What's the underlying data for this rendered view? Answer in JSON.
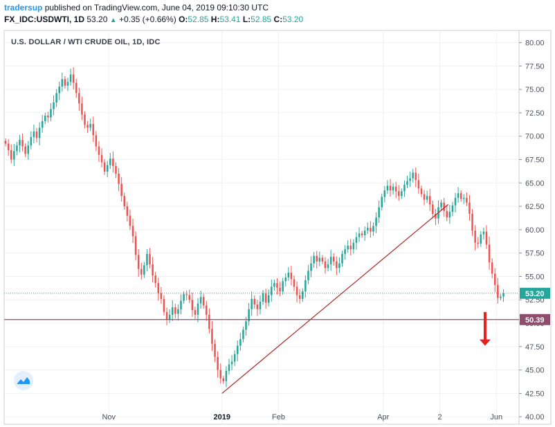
{
  "header": {
    "author": "tradersup",
    "published": "published on TradingView.com, June 04, 2019 09:10:30 UTC",
    "symbol": "FX_IDC:USDWTI, 1D",
    "last": "53.20",
    "change": "+0.35 (+0.66%)",
    "o_label": "O:",
    "o": "52.85",
    "h_label": "H:",
    "h": "53.41",
    "l_label": "L:",
    "l": "52.85",
    "c_label": "C:",
    "c": "53.20"
  },
  "colors": {
    "up": "#26a69a",
    "down": "#ef5350",
    "trend": "#b22222",
    "level": "#8e4d6a",
    "arrow": "#e8211c"
  },
  "icons": {
    "logo": "tradingview-logo-icon",
    "arrow": "red-down-arrow-icon"
  },
  "chart_data": {
    "type": "candlestick",
    "title": "U.S. DOLLAR / WTI CRUDE OIL, 1D, IDC",
    "ylim": [
      39.2,
      81.3
    ],
    "xlim": [
      0,
      182
    ],
    "yticks": [
      "80.00",
      "77.50",
      "75.00",
      "72.50",
      "70.00",
      "67.50",
      "65.00",
      "62.50",
      "60.00",
      "57.50",
      "55.00",
      "52.50",
      "50.00",
      "47.50",
      "45.00",
      "42.50",
      "40.00"
    ],
    "xticks": [
      {
        "label": "Nov",
        "x": 37,
        "bold": false
      },
      {
        "label": "2019",
        "x": 77,
        "bold": true
      },
      {
        "label": "Feb",
        "x": 97,
        "bold": false
      },
      {
        "label": "Apr",
        "x": 134,
        "bold": false
      },
      {
        "label": "2",
        "x": 154,
        "bold": false
      },
      {
        "label": "Jun",
        "x": 174,
        "bold": false
      }
    ],
    "closes": [
      69.2,
      68.5,
      67.5,
      68.4,
      69.0,
      69.6,
      68.9,
      68.1,
      69.0,
      69.9,
      70.5,
      69.8,
      70.9,
      71.6,
      72.2,
      72.0,
      72.9,
      73.6,
      74.6,
      75.3,
      76.1,
      75.4,
      75.8,
      76.6,
      75.7,
      74.6,
      73.5,
      72.3,
      71.2,
      70.9,
      71.3,
      70.1,
      68.9,
      68.0,
      67.2,
      66.2,
      66.9,
      67.6,
      66.8,
      66.0,
      64.9,
      63.6,
      62.5,
      61.5,
      60.4,
      59.3,
      57.3,
      55.8,
      55.2,
      56.2,
      57.4,
      56.3,
      55.1,
      54.3,
      53.2,
      52.6,
      51.2,
      50.4,
      50.9,
      51.7,
      51.0,
      51.5,
      52.4,
      53.1,
      53.0,
      52.5,
      51.4,
      50.9,
      52.1,
      52.8,
      51.9,
      50.9,
      49.4,
      47.8,
      46.4,
      45.0,
      44.1,
      43.8,
      44.9,
      45.6,
      45.9,
      46.7,
      47.6,
      48.3,
      49.3,
      50.2,
      51.5,
      52.6,
      52.0,
      51.5,
      52.3,
      53.2,
      52.2,
      53.0,
      53.9,
      54.3,
      53.8,
      53.4,
      54.5,
      54.9,
      55.4,
      54.7,
      53.9,
      53.0,
      52.6,
      53.4,
      54.6,
      55.6,
      56.4,
      57.2,
      56.6,
      57.0,
      56.6,
      55.9,
      56.3,
      57.1,
      56.6,
      55.9,
      56.4,
      57.4,
      57.9,
      58.3,
      57.9,
      58.6,
      59.2,
      59.6,
      59.4,
      59.9,
      60.2,
      59.8,
      60.4,
      61.3,
      62.4,
      63.5,
      64.2,
      64.7,
      64.2,
      64.6,
      64.1,
      63.6,
      64.1,
      64.8,
      65.2,
      65.5,
      66.1,
      65.3,
      64.4,
      63.8,
      63.2,
      63.6,
      62.7,
      61.7,
      61.2,
      62.4,
      62.9,
      62.0,
      61.3,
      61.9,
      62.6,
      63.4,
      63.9,
      63.3,
      63.4,
      62.9,
      61.7,
      59.9,
      58.6,
      58.5,
      59.5,
      59.8,
      58.4,
      56.5,
      55.3,
      54.1,
      52.7,
      52.85,
      53.2
    ],
    "last_price": {
      "value": 53.2,
      "label": "53.20"
    },
    "level": {
      "value": 50.39,
      "label": "50.39"
    },
    "trendline": {
      "x1": 77,
      "y1": 42.5,
      "x2": 157,
      "y2": 62.7
    },
    "arrow": {
      "x": 170,
      "from": 51.2,
      "to": 47.6
    }
  }
}
